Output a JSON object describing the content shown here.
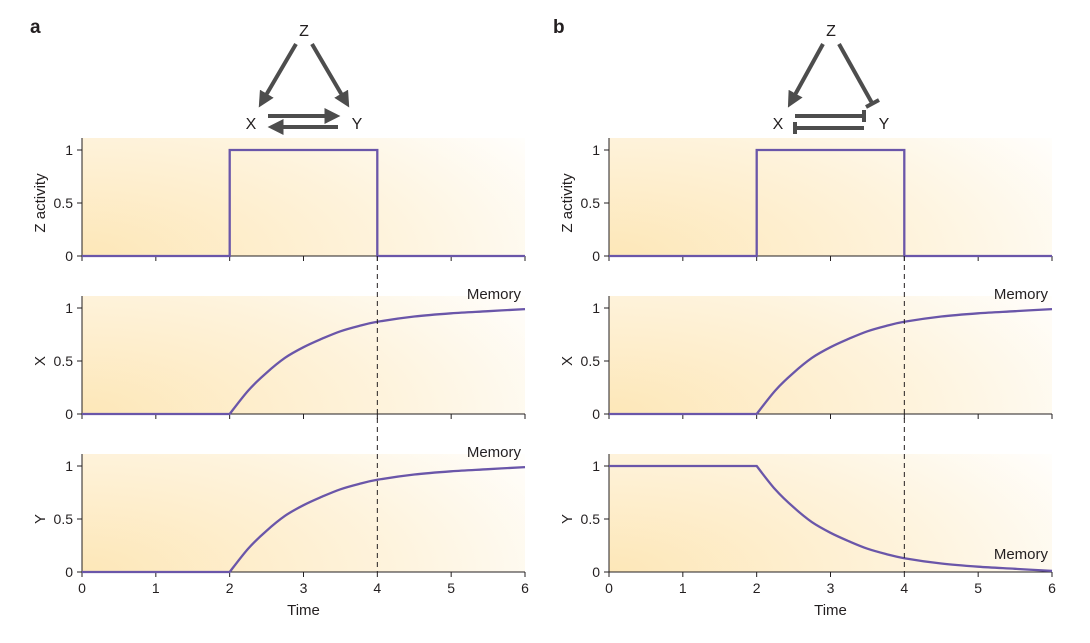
{
  "colors": {
    "curve": "#6a56a9",
    "background_gradient": "#fde7b8",
    "network_edge": "#4d4d4d",
    "text": "#231f20"
  },
  "panels": [
    {
      "letter": "a",
      "network": {
        "nodes": {
          "top": "Z",
          "left": "X",
          "right": "Y"
        },
        "edges": [
          {
            "from": "Z",
            "to": "X",
            "type": "activation"
          },
          {
            "from": "Z",
            "to": "Y",
            "type": "activation"
          },
          {
            "from": "X",
            "to": "Y",
            "type": "activation"
          },
          {
            "from": "Y",
            "to": "X",
            "type": "activation"
          }
        ]
      }
    },
    {
      "letter": "b",
      "network": {
        "nodes": {
          "top": "Z",
          "left": "X",
          "right": "Y"
        },
        "edges": [
          {
            "from": "Z",
            "to": "X",
            "type": "activation"
          },
          {
            "from": "Z",
            "to": "Y",
            "type": "repression"
          },
          {
            "from": "X",
            "to": "Y",
            "type": "repression"
          },
          {
            "from": "Y",
            "to": "X",
            "type": "repression"
          }
        ]
      }
    }
  ],
  "chart_data": [
    {
      "type": "line",
      "panel": "a",
      "ylabel": "Z activity",
      "xlim": [
        0,
        6
      ],
      "ylim": [
        0,
        1
      ],
      "yticks": [
        "0",
        "0.5",
        "1"
      ],
      "xticks_visible": false,
      "series": [
        {
          "x": [
            0,
            2,
            2,
            4,
            4,
            6
          ],
          "y": [
            0,
            0,
            1,
            1,
            0,
            0
          ]
        }
      ],
      "vline_x": 4,
      "annotation": ""
    },
    {
      "type": "line",
      "panel": "a",
      "ylabel": "X",
      "xlim": [
        0,
        6
      ],
      "ylim": [
        0,
        1
      ],
      "yticks": [
        "0",
        "0.5",
        "1"
      ],
      "xticks_visible": false,
      "series": [
        {
          "x": [
            0,
            2,
            2.25,
            2.5,
            2.75,
            3,
            3.25,
            3.5,
            3.75,
            4,
            4.5,
            5,
            5.5,
            6
          ],
          "y": [
            0,
            0,
            0.22,
            0.39,
            0.53,
            0.63,
            0.71,
            0.78,
            0.83,
            0.87,
            0.92,
            0.95,
            0.97,
            0.99
          ]
        }
      ],
      "vline_x": 4,
      "annotation": "Memory"
    },
    {
      "type": "line",
      "panel": "a",
      "ylabel": "Y",
      "xlabel": "Time",
      "xlim": [
        0,
        6
      ],
      "ylim": [
        0,
        1
      ],
      "yticks": [
        "0",
        "0.5",
        "1"
      ],
      "xticks": [
        "0",
        "1",
        "2",
        "3",
        "4",
        "5",
        "6"
      ],
      "xticks_visible": true,
      "series": [
        {
          "x": [
            0,
            2,
            2.25,
            2.5,
            2.75,
            3,
            3.25,
            3.5,
            3.75,
            4,
            4.5,
            5,
            5.5,
            6
          ],
          "y": [
            0,
            0,
            0.22,
            0.39,
            0.53,
            0.63,
            0.71,
            0.78,
            0.83,
            0.87,
            0.92,
            0.95,
            0.97,
            0.99
          ]
        }
      ],
      "vline_x": 4,
      "annotation": "Memory"
    },
    {
      "type": "line",
      "panel": "b",
      "ylabel": "Z activity",
      "xlim": [
        0,
        6
      ],
      "ylim": [
        0,
        1
      ],
      "yticks": [
        "0",
        "0.5",
        "1"
      ],
      "xticks_visible": false,
      "series": [
        {
          "x": [
            0,
            2,
            2,
            4,
            4,
            6
          ],
          "y": [
            0,
            0,
            1,
            1,
            0,
            0
          ]
        }
      ],
      "vline_x": 4,
      "annotation": ""
    },
    {
      "type": "line",
      "panel": "b",
      "ylabel": "X",
      "xlim": [
        0,
        6
      ],
      "ylim": [
        0,
        1
      ],
      "yticks": [
        "0",
        "0.5",
        "1"
      ],
      "xticks_visible": false,
      "series": [
        {
          "x": [
            0,
            2,
            2.25,
            2.5,
            2.75,
            3,
            3.25,
            3.5,
            3.75,
            4,
            4.5,
            5,
            5.5,
            6
          ],
          "y": [
            0,
            0,
            0.22,
            0.39,
            0.53,
            0.63,
            0.71,
            0.78,
            0.83,
            0.87,
            0.92,
            0.95,
            0.97,
            0.99
          ]
        }
      ],
      "vline_x": 4,
      "annotation": "Memory"
    },
    {
      "type": "line",
      "panel": "b",
      "ylabel": "Y",
      "xlabel": "Time",
      "xlim": [
        0,
        6
      ],
      "ylim": [
        0,
        1
      ],
      "yticks": [
        "0",
        "0.5",
        "1"
      ],
      "xticks": [
        "0",
        "1",
        "2",
        "3",
        "4",
        "5",
        "6"
      ],
      "xticks_visible": true,
      "series": [
        {
          "x": [
            0,
            2,
            2.25,
            2.5,
            2.75,
            3,
            3.25,
            3.5,
            3.75,
            4,
            4.5,
            5,
            5.5,
            6
          ],
          "y": [
            1,
            1,
            0.78,
            0.61,
            0.47,
            0.37,
            0.29,
            0.22,
            0.17,
            0.13,
            0.08,
            0.05,
            0.03,
            0.01
          ]
        }
      ],
      "vline_x": 4,
      "annotation": "Memory"
    }
  ]
}
